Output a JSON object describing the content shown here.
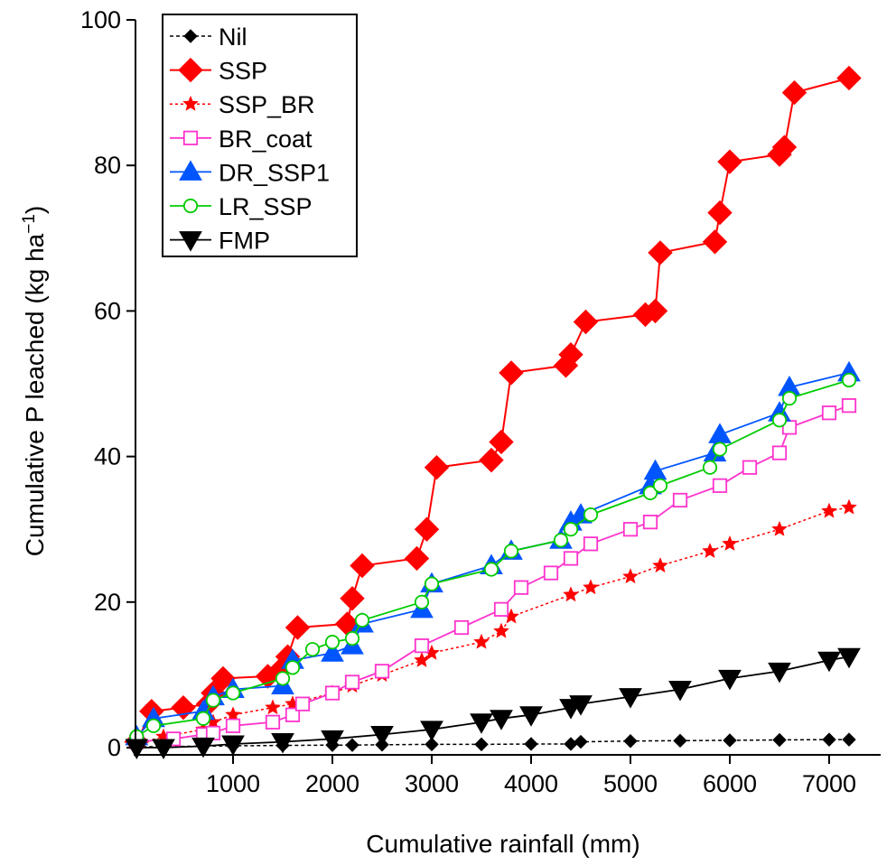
{
  "chart_data": {
    "type": "line",
    "xlabel": "Cumulative rainfall (mm)",
    "ylabel_main": "Cumulative P leached (kg ha",
    "ylabel_sup": "−1",
    "ylabel_close": ")",
    "xlim": [
      0,
      7300
    ],
    "ylim": [
      0,
      100
    ],
    "xticks": [
      1000,
      2000,
      3000,
      4000,
      5000,
      6000,
      7000
    ],
    "yticks": [
      0,
      20,
      40,
      60,
      80,
      100
    ],
    "x_tick_labels": [
      "1000",
      "2000",
      "3000",
      "4000",
      "5000",
      "6000",
      "7000"
    ],
    "y_tick_labels": [
      "0",
      "20",
      "40",
      "60",
      "80",
      "100"
    ],
    "legend_position": "top-left",
    "grid": false,
    "series": [
      {
        "name": "Nil",
        "color": "#000000",
        "marker": "diamond",
        "marker_size": 7,
        "filled": true,
        "dash": "4,3",
        "line_width": 1.5,
        "points": [
          [
            30,
            0.1
          ],
          [
            300,
            0.15
          ],
          [
            700,
            0.2
          ],
          [
            1000,
            0.25
          ],
          [
            1500,
            0.3
          ],
          [
            2000,
            0.35
          ],
          [
            2200,
            0.35
          ],
          [
            2500,
            0.4
          ],
          [
            3000,
            0.45
          ],
          [
            3500,
            0.45
          ],
          [
            4000,
            0.5
          ],
          [
            4400,
            0.5
          ],
          [
            4500,
            0.8
          ],
          [
            5000,
            0.9
          ],
          [
            5500,
            0.95
          ],
          [
            6000,
            1.0
          ],
          [
            6500,
            1.05
          ],
          [
            7000,
            1.1
          ],
          [
            7200,
            1.1
          ]
        ]
      },
      {
        "name": "SSP",
        "color": "#ff0000",
        "marker": "diamond",
        "marker_size": 13,
        "filled": true,
        "dash": "",
        "line_width": 2,
        "points": [
          [
            30,
            0.8
          ],
          [
            180,
            5
          ],
          [
            500,
            5.5
          ],
          [
            750,
            6
          ],
          [
            800,
            7.5
          ],
          [
            900,
            9.5
          ],
          [
            1350,
            9.8
          ],
          [
            1500,
            11
          ],
          [
            1550,
            12.5
          ],
          [
            1650,
            16.5
          ],
          [
            2150,
            17
          ],
          [
            2200,
            20.5
          ],
          [
            2300,
            25
          ],
          [
            2850,
            26
          ],
          [
            2950,
            30
          ],
          [
            3050,
            38.5
          ],
          [
            3600,
            39.5
          ],
          [
            3700,
            42
          ],
          [
            3800,
            51.5
          ],
          [
            4350,
            52.5
          ],
          [
            4400,
            54
          ],
          [
            4550,
            58.5
          ],
          [
            5150,
            59.5
          ],
          [
            5250,
            60
          ],
          [
            5300,
            68
          ],
          [
            5850,
            69.5
          ],
          [
            5900,
            73.5
          ],
          [
            6000,
            80.5
          ],
          [
            6500,
            81.5
          ],
          [
            6550,
            82.5
          ],
          [
            6650,
            90
          ],
          [
            7200,
            92
          ]
        ]
      },
      {
        "name": "SSP_BR",
        "color": "#ff0000",
        "marker": "star",
        "marker_size": 8,
        "filled": true,
        "dash": "3,3",
        "line_width": 1.5,
        "points": [
          [
            30,
            0.5
          ],
          [
            300,
            1.5
          ],
          [
            700,
            2.5
          ],
          [
            800,
            3.5
          ],
          [
            1000,
            4.5
          ],
          [
            1400,
            5.5
          ],
          [
            1600,
            6
          ],
          [
            2000,
            7.5
          ],
          [
            2200,
            8.5
          ],
          [
            2500,
            10
          ],
          [
            2900,
            12
          ],
          [
            3000,
            13
          ],
          [
            3500,
            14.5
          ],
          [
            3700,
            16
          ],
          [
            3800,
            18
          ],
          [
            4400,
            21
          ],
          [
            4600,
            22
          ],
          [
            5000,
            23.5
          ],
          [
            5300,
            25
          ],
          [
            5800,
            27
          ],
          [
            6000,
            28
          ],
          [
            6500,
            30
          ],
          [
            7000,
            32.5
          ],
          [
            7200,
            33
          ]
        ]
      },
      {
        "name": "BR_coat",
        "color": "#ff33cc",
        "marker": "square",
        "marker_size": 10,
        "filled": false,
        "dash": "",
        "line_width": 1.8,
        "points": [
          [
            30,
            0.8
          ],
          [
            400,
            1.2
          ],
          [
            700,
            1.8
          ],
          [
            800,
            2
          ],
          [
            1000,
            3
          ],
          [
            1400,
            3.5
          ],
          [
            1600,
            4.5
          ],
          [
            1700,
            6
          ],
          [
            2000,
            7.5
          ],
          [
            2200,
            9
          ],
          [
            2500,
            10.5
          ],
          [
            2900,
            14
          ],
          [
            3300,
            16.5
          ],
          [
            3700,
            19
          ],
          [
            3900,
            22
          ],
          [
            4200,
            24
          ],
          [
            4400,
            26
          ],
          [
            4600,
            28
          ],
          [
            5000,
            30
          ],
          [
            5200,
            31
          ],
          [
            5500,
            34
          ],
          [
            5900,
            36
          ],
          [
            6200,
            38.5
          ],
          [
            6500,
            40.5
          ],
          [
            6600,
            44
          ],
          [
            7000,
            46
          ],
          [
            7200,
            47
          ]
        ]
      },
      {
        "name": "DR_SSP1",
        "color": "#0055ff",
        "marker": "triangle-up",
        "marker_size": 12,
        "filled": true,
        "dash": "",
        "line_width": 1.8,
        "points": [
          [
            30,
            1.5
          ],
          [
            200,
            4
          ],
          [
            700,
            5
          ],
          [
            800,
            7
          ],
          [
            1000,
            8
          ],
          [
            1500,
            8.5
          ],
          [
            1600,
            12
          ],
          [
            2000,
            13
          ],
          [
            2200,
            14
          ],
          [
            2300,
            17
          ],
          [
            2900,
            19
          ],
          [
            3000,
            22.5
          ],
          [
            3600,
            25
          ],
          [
            3800,
            27
          ],
          [
            4300,
            28.5
          ],
          [
            4400,
            31
          ],
          [
            4500,
            32
          ],
          [
            5200,
            36
          ],
          [
            5250,
            38
          ],
          [
            5850,
            40.5
          ],
          [
            5900,
            43
          ],
          [
            6500,
            46
          ],
          [
            6600,
            49.5
          ],
          [
            7200,
            51.5
          ]
        ]
      },
      {
        "name": "LR_SSP",
        "color": "#00cc00",
        "marker": "circle",
        "marker_size": 10,
        "filled": false,
        "dash": "",
        "line_width": 1.8,
        "points": [
          [
            30,
            1.5
          ],
          [
            200,
            3
          ],
          [
            700,
            4
          ],
          [
            800,
            6.5
          ],
          [
            1000,
            7.5
          ],
          [
            1500,
            9.5
          ],
          [
            1600,
            11
          ],
          [
            1800,
            13.5
          ],
          [
            2000,
            14.5
          ],
          [
            2200,
            15
          ],
          [
            2300,
            17.5
          ],
          [
            2900,
            20
          ],
          [
            3000,
            22.5
          ],
          [
            3600,
            24.5
          ],
          [
            3800,
            27
          ],
          [
            4300,
            28.5
          ],
          [
            4400,
            30
          ],
          [
            4600,
            32
          ],
          [
            5200,
            35
          ],
          [
            5300,
            36
          ],
          [
            5800,
            38.5
          ],
          [
            5900,
            41
          ],
          [
            6500,
            45
          ],
          [
            6600,
            48
          ],
          [
            7200,
            50.5
          ]
        ]
      },
      {
        "name": "FMP",
        "color": "#000000",
        "marker": "triangle-down",
        "marker_size": 12,
        "filled": true,
        "dash": "",
        "line_width": 1.8,
        "points": [
          [
            30,
            0
          ],
          [
            300,
            0
          ],
          [
            700,
            0.2
          ],
          [
            1000,
            0.5
          ],
          [
            1500,
            0.8
          ],
          [
            2000,
            1.2
          ],
          [
            2500,
            1.8
          ],
          [
            3000,
            2.5
          ],
          [
            3500,
            3.5
          ],
          [
            3700,
            4
          ],
          [
            4000,
            4.5
          ],
          [
            4400,
            5.5
          ],
          [
            4500,
            6
          ],
          [
            5000,
            7
          ],
          [
            5500,
            8
          ],
          [
            6000,
            9.5
          ],
          [
            6500,
            10.5
          ],
          [
            7000,
            12
          ],
          [
            7200,
            12.5
          ]
        ]
      }
    ]
  }
}
